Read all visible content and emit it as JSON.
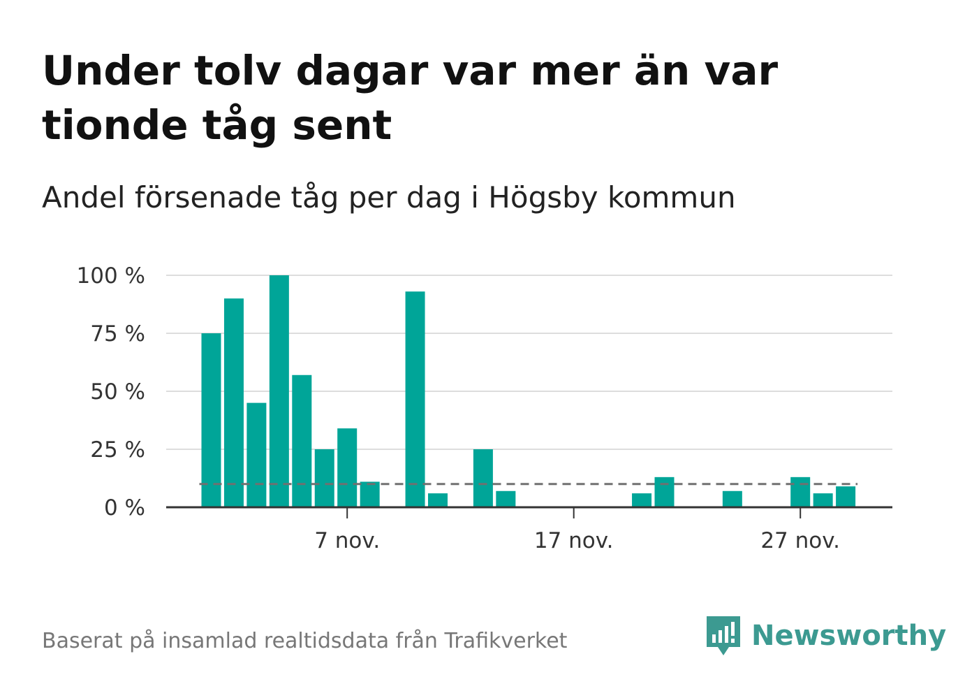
{
  "title": "Under tolv dagar var mer än var tionde tåg sent",
  "subtitle": "Andel försenade tåg per dag i Högsby kommun",
  "footer": "Baserat på insamlad realtidsdata från Trafikverket",
  "brand": {
    "name": "Newsworthy",
    "icon": "newsworthy-logo-icon"
  },
  "colors": {
    "bar": "#00a598",
    "reference_line": "#707070",
    "grid": "#dddddd",
    "axis": "#333333",
    "brand": "#3c9a91"
  },
  "chart_data": {
    "type": "bar",
    "x_unit": "day of November",
    "x": [
      1,
      2,
      3,
      4,
      5,
      6,
      7,
      8,
      9,
      10,
      11,
      12,
      13,
      14,
      15,
      16,
      17,
      18,
      19,
      20,
      21,
      22,
      23,
      24,
      25,
      26,
      27,
      28,
      29,
      30
    ],
    "values": [
      75,
      90,
      45,
      100,
      57,
      25,
      34,
      11,
      null,
      93,
      6,
      null,
      25,
      7,
      null,
      null,
      null,
      null,
      null,
      6,
      13,
      null,
      null,
      7,
      null,
      null,
      13,
      6,
      9,
      null
    ],
    "reference_line": 10,
    "y_ticks": [
      "0 %",
      "25 %",
      "50 %",
      "75 %",
      "100 %"
    ],
    "y_tick_values": [
      0,
      25,
      50,
      75,
      100
    ],
    "x_ticks": [
      {
        "day": 7,
        "label": "7 nov."
      },
      {
        "day": 17,
        "label": "17 nov."
      },
      {
        "day": 27,
        "label": "27 nov."
      }
    ],
    "ylim": [
      0,
      100
    ],
    "grid": true
  }
}
